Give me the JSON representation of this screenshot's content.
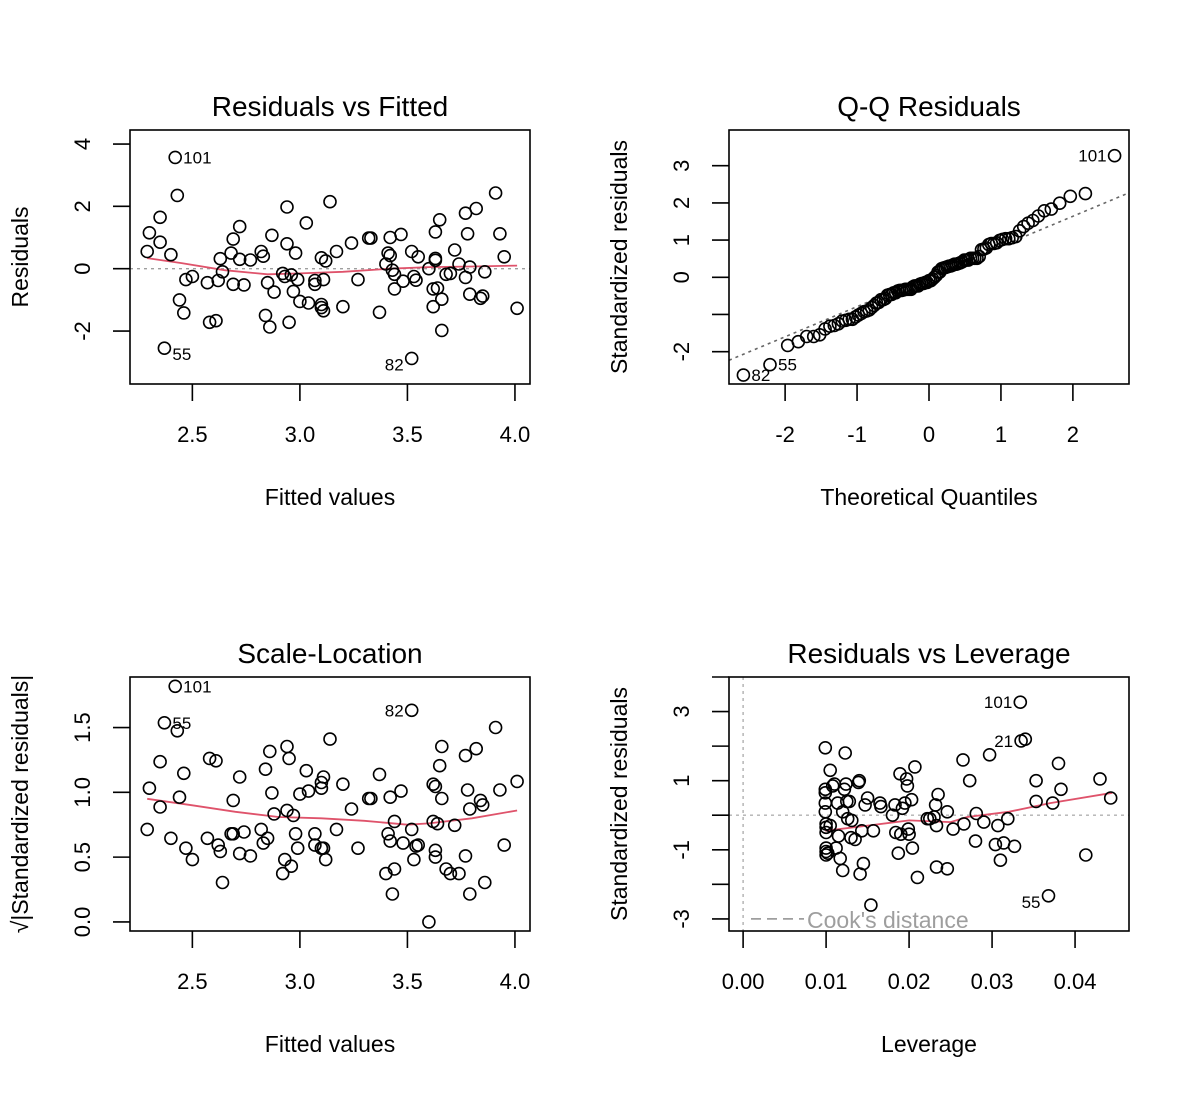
{
  "colors": {
    "smooth": "#DF536B",
    "ref": "#9E9E9E",
    "points": "#000000"
  },
  "chart_data": [
    {
      "type": "scatter",
      "id": "rvf",
      "title": "Residuals vs Fitted",
      "xlabel": "Fitted values",
      "ylabel": "Residuals",
      "xlim": [
        2.21,
        4.07
      ],
      "ylim": [
        -3.7,
        4.45
      ],
      "xticks": [
        2.5,
        3.0,
        3.5,
        4.0
      ],
      "xtick_labels": [
        "2.5",
        "3.0",
        "3.5",
        "4.0"
      ],
      "yticks": [
        -2,
        0,
        2,
        4
      ],
      "ytick_labels": [
        "-2",
        "0",
        "2",
        "4"
      ],
      "ref_line": {
        "type": "h",
        "value": 0,
        "style": "dotted"
      },
      "points": [
        [
          2.29,
          0.55
        ],
        [
          2.3,
          1.15
        ],
        [
          2.35,
          1.65
        ],
        [
          2.35,
          0.85
        ],
        [
          2.4,
          0.45
        ],
        [
          2.42,
          3.57
        ],
        [
          2.43,
          2.35
        ],
        [
          2.37,
          -2.55
        ],
        [
          2.44,
          -1.0
        ],
        [
          2.46,
          -1.42
        ],
        [
          2.47,
          -0.35
        ],
        [
          2.5,
          -0.25
        ],
        [
          2.57,
          -0.45
        ],
        [
          2.58,
          -1.72
        ],
        [
          2.61,
          -1.67
        ],
        [
          2.62,
          -0.38
        ],
        [
          2.63,
          0.32
        ],
        [
          2.64,
          -0.1
        ],
        [
          2.69,
          0.95
        ],
        [
          2.68,
          0.5
        ],
        [
          2.69,
          -0.5
        ],
        [
          2.72,
          1.35
        ],
        [
          2.72,
          0.3
        ],
        [
          2.74,
          -0.52
        ],
        [
          2.77,
          0.28
        ],
        [
          2.82,
          0.55
        ],
        [
          2.83,
          0.4
        ],
        [
          2.84,
          -1.5
        ],
        [
          2.85,
          -0.45
        ],
        [
          2.86,
          -1.87
        ],
        [
          2.87,
          1.07
        ],
        [
          2.88,
          -0.75
        ],
        [
          2.92,
          -0.15
        ],
        [
          2.93,
          -0.25
        ],
        [
          2.94,
          1.98
        ],
        [
          2.94,
          0.8
        ],
        [
          2.95,
          -1.72
        ],
        [
          2.96,
          -0.2
        ],
        [
          2.97,
          -0.73
        ],
        [
          2.98,
          0.5
        ],
        [
          2.99,
          -0.35
        ],
        [
          3.0,
          -1.05
        ],
        [
          3.03,
          1.47
        ],
        [
          3.04,
          -1.1
        ],
        [
          3.07,
          -0.5
        ],
        [
          3.07,
          -0.38
        ],
        [
          3.1,
          0.35
        ],
        [
          3.1,
          -1.15
        ],
        [
          3.1,
          -1.25
        ],
        [
          3.11,
          -0.35
        ],
        [
          3.11,
          -1.35
        ],
        [
          3.12,
          0.25
        ],
        [
          3.14,
          2.15
        ],
        [
          3.17,
          0.55
        ],
        [
          3.2,
          -1.22
        ],
        [
          3.24,
          0.82
        ],
        [
          3.27,
          -0.35
        ],
        [
          3.32,
          0.98
        ],
        [
          3.33,
          0.98
        ],
        [
          3.37,
          -1.4
        ],
        [
          3.4,
          0.15
        ],
        [
          3.41,
          0.5
        ],
        [
          3.42,
          1.0
        ],
        [
          3.42,
          0.42
        ],
        [
          3.43,
          -0.05
        ],
        [
          3.44,
          -0.65
        ],
        [
          3.44,
          -0.18
        ],
        [
          3.47,
          1.1
        ],
        [
          3.48,
          -0.4
        ],
        [
          3.52,
          -2.88
        ],
        [
          3.52,
          0.55
        ],
        [
          3.53,
          -0.25
        ],
        [
          3.54,
          -0.37
        ],
        [
          3.55,
          0.38
        ],
        [
          3.6,
          0.0
        ],
        [
          3.62,
          -1.22
        ],
        [
          3.62,
          -0.65
        ],
        [
          3.63,
          0.33
        ],
        [
          3.63,
          0.27
        ],
        [
          3.63,
          1.18
        ],
        [
          3.64,
          -0.62
        ],
        [
          3.65,
          1.57
        ],
        [
          3.66,
          -0.98
        ],
        [
          3.66,
          -1.98
        ],
        [
          3.68,
          -0.18
        ],
        [
          3.7,
          -0.15
        ],
        [
          3.72,
          0.6
        ],
        [
          3.74,
          0.15
        ],
        [
          3.77,
          -0.28
        ],
        [
          3.77,
          1.78
        ],
        [
          3.78,
          1.12
        ],
        [
          3.79,
          0.05
        ],
        [
          3.79,
          -0.82
        ],
        [
          3.82,
          1.93
        ],
        [
          3.84,
          -0.95
        ],
        [
          3.85,
          -0.88
        ],
        [
          3.86,
          -0.1
        ],
        [
          3.91,
          2.43
        ],
        [
          3.93,
          1.12
        ],
        [
          3.95,
          0.38
        ],
        [
          4.01,
          -1.27
        ]
      ],
      "smooth": [
        [
          2.29,
          0.34
        ],
        [
          2.45,
          0.18
        ],
        [
          2.65,
          -0.05
        ],
        [
          2.85,
          -0.18
        ],
        [
          3.0,
          -0.15
        ],
        [
          3.2,
          -0.1
        ],
        [
          3.42,
          0.0
        ],
        [
          3.6,
          0.05
        ],
        [
          3.8,
          0.07
        ],
        [
          4.01,
          0.1
        ]
      ],
      "labels": [
        {
          "text": "101",
          "x": 2.42,
          "y": 3.57,
          "side": "right"
        },
        {
          "text": "55",
          "x": 2.37,
          "y": -2.55,
          "side": "right-low"
        },
        {
          "text": "82",
          "x": 3.52,
          "y": -2.88,
          "side": "left-low"
        }
      ]
    },
    {
      "type": "scatter",
      "id": "qq",
      "title": "Q-Q Residuals",
      "xlabel": "Theoretical Quantiles",
      "ylabel": "Standardized residuals",
      "xlim": [
        -2.78,
        2.78
      ],
      "ylim": [
        -2.87,
        3.96
      ],
      "xticks": [
        -2,
        -1,
        0,
        1,
        2
      ],
      "xtick_labels": [
        "-2",
        "-1",
        "0",
        "1",
        "2"
      ],
      "yticks": [
        -2,
        -1,
        0,
        1,
        2,
        3
      ],
      "ytick_labels": [
        "-2",
        "",
        "0",
        "1",
        "2",
        "3"
      ],
      "ref_line": {
        "type": "ab",
        "intercept": 0.02,
        "slope": 0.81,
        "style": "dotted"
      },
      "n": 101,
      "extremes": {
        "low": [
          -2.58,
          -2.63
        ],
        "low2": [
          -2.21,
          -2.35
        ],
        "high": [
          2.58,
          3.27
        ]
      },
      "labels": [
        {
          "text": "101",
          "x": 2.58,
          "y": 3.27,
          "side": "left"
        },
        {
          "text": "55",
          "x": -2.21,
          "y": -2.35,
          "side": "right"
        },
        {
          "text": "82",
          "x": -2.58,
          "y": -2.63,
          "side": "right"
        }
      ]
    },
    {
      "type": "scatter",
      "id": "sl",
      "title": "Scale-Location",
      "xlabel": "Fitted values",
      "ylabel": "√|Standardized residuals|",
      "xlim": [
        2.21,
        4.07
      ],
      "ylim": [
        -0.07,
        1.89
      ],
      "xticks": [
        2.5,
        3.0,
        3.5,
        4.0
      ],
      "xtick_labels": [
        "2.5",
        "3.0",
        "3.5",
        "4.0"
      ],
      "yticks": [
        0.0,
        0.5,
        1.0,
        1.5
      ],
      "ytick_labels": [
        "0.0",
        "0.5",
        "1.0",
        "1.5"
      ],
      "smooth": [
        [
          2.29,
          0.95
        ],
        [
          2.5,
          0.9
        ],
        [
          2.7,
          0.85
        ],
        [
          2.9,
          0.81
        ],
        [
          3.1,
          0.8
        ],
        [
          3.3,
          0.78
        ],
        [
          3.5,
          0.75
        ],
        [
          3.6,
          0.76
        ],
        [
          3.8,
          0.8
        ],
        [
          4.01,
          0.86
        ]
      ],
      "labels": [
        {
          "text": "101",
          "x": 2.42,
          "y": 1.81,
          "side": "right"
        },
        {
          "text": "55",
          "x": 2.37,
          "y": 1.53,
          "side": "right"
        },
        {
          "text": "82",
          "x": 3.52,
          "y": 1.62,
          "side": "left"
        }
      ]
    },
    {
      "type": "scatter",
      "id": "rvl",
      "title": "Residuals vs Leverage",
      "xlabel": "Leverage",
      "ylabel": "Standardized residuals",
      "xlim": [
        -0.0017,
        0.0465
      ],
      "ylim": [
        -3.35,
        4.0
      ],
      "xticks": [
        0.0,
        0.01,
        0.02,
        0.03,
        0.04
      ],
      "xtick_labels": [
        "0.00",
        "0.01",
        "0.02",
        "0.03",
        "0.04"
      ],
      "yticks": [
        -3,
        -2,
        -1,
        0,
        1,
        2,
        3,
        4
      ],
      "ytick_labels": [
        "-3",
        "",
        "-1",
        "",
        "1",
        "",
        "3",
        ""
      ],
      "legend": "Cook's distance",
      "smooth": [
        [
          0.0099,
          -0.45
        ],
        [
          0.015,
          -0.3
        ],
        [
          0.02,
          -0.15
        ],
        [
          0.025,
          -0.2
        ],
        [
          0.027,
          -0.05
        ],
        [
          0.032,
          0.1
        ],
        [
          0.037,
          0.35
        ],
        [
          0.0445,
          0.65
        ]
      ],
      "points": [
        [
          0.0099,
          1.95
        ],
        [
          0.0099,
          0.75
        ],
        [
          0.0099,
          0.65
        ],
        [
          0.0099,
          0.35
        ],
        [
          0.0099,
          0.1
        ],
        [
          0.01,
          -0.25
        ],
        [
          0.01,
          -0.35
        ],
        [
          0.01,
          -0.5
        ],
        [
          0.01,
          -0.95
        ],
        [
          0.01,
          -1.05
        ],
        [
          0.01,
          -1.15
        ],
        [
          0.0102,
          -1.1
        ],
        [
          0.0105,
          1.3
        ],
        [
          0.0105,
          -0.3
        ],
        [
          0.0108,
          0.85
        ],
        [
          0.011,
          0.9
        ],
        [
          0.0112,
          -0.95
        ],
        [
          0.0114,
          0.35
        ],
        [
          0.0115,
          -0.6
        ],
        [
          0.0117,
          -1.25
        ],
        [
          0.012,
          0.1
        ],
        [
          0.012,
          -1.6
        ],
        [
          0.0122,
          0.75
        ],
        [
          0.0123,
          1.8
        ],
        [
          0.0124,
          0.9
        ],
        [
          0.0125,
          0.4
        ],
        [
          0.0126,
          -0.1
        ],
        [
          0.0128,
          0.4
        ],
        [
          0.013,
          -0.65
        ],
        [
          0.0131,
          -0.15
        ],
        [
          0.0135,
          -0.7
        ],
        [
          0.0139,
          0.95
        ],
        [
          0.014,
          1.0
        ],
        [
          0.0141,
          -1.7
        ],
        [
          0.0143,
          -0.45
        ],
        [
          0.0145,
          -1.4
        ],
        [
          0.0147,
          0.3
        ],
        [
          0.015,
          0.5
        ],
        [
          0.0154,
          -2.6
        ],
        [
          0.0157,
          -0.45
        ],
        [
          0.0165,
          0.35
        ],
        [
          0.0166,
          0.25
        ],
        [
          0.018,
          0.0
        ],
        [
          0.0183,
          0.3
        ],
        [
          0.0184,
          -0.5
        ],
        [
          0.0187,
          -1.1
        ],
        [
          0.0189,
          1.2
        ],
        [
          0.019,
          -0.55
        ],
        [
          0.0192,
          0.2
        ],
        [
          0.0195,
          0.35
        ],
        [
          0.0197,
          1.05
        ],
        [
          0.0198,
          0.85
        ],
        [
          0.0199,
          -0.4
        ],
        [
          0.02,
          -0.55
        ],
        [
          0.0203,
          0.45
        ],
        [
          0.0204,
          -0.95
        ],
        [
          0.0207,
          1.4
        ],
        [
          0.021,
          -1.8
        ],
        [
          0.0222,
          -0.1
        ],
        [
          0.0225,
          -0.1
        ],
        [
          0.023,
          -0.05
        ],
        [
          0.0232,
          0.3
        ],
        [
          0.0233,
          -1.5
        ],
        [
          0.0233,
          -0.3
        ],
        [
          0.0235,
          0.6
        ],
        [
          0.0246,
          -1.55
        ],
        [
          0.0246,
          0.1
        ],
        [
          0.0253,
          -0.4
        ],
        [
          0.0265,
          1.6
        ],
        [
          0.0266,
          -0.25
        ],
        [
          0.0273,
          1.0
        ],
        [
          0.028,
          -0.75
        ],
        [
          0.0281,
          0.05
        ],
        [
          0.029,
          -0.2
        ],
        [
          0.0297,
          1.75
        ],
        [
          0.0304,
          -0.85
        ],
        [
          0.0307,
          -0.3
        ],
        [
          0.031,
          -1.3
        ],
        [
          0.0314,
          -0.8
        ],
        [
          0.0319,
          -0.1
        ],
        [
          0.0327,
          -0.9
        ],
        [
          0.0334,
          3.27
        ],
        [
          0.0335,
          2.15
        ],
        [
          0.034,
          2.2
        ],
        [
          0.0353,
          1.0
        ],
        [
          0.0353,
          0.4
        ],
        [
          0.0368,
          -2.33
        ],
        [
          0.0373,
          0.35
        ],
        [
          0.038,
          1.5
        ],
        [
          0.0383,
          0.75
        ],
        [
          0.0413,
          -1.15
        ],
        [
          0.043,
          1.05
        ],
        [
          0.0443,
          0.5
        ]
      ],
      "labels": [
        {
          "text": "101",
          "x": 0.0334,
          "y": 3.27,
          "side": "left"
        },
        {
          "text": "21",
          "x": 0.0335,
          "y": 2.15,
          "side": "left"
        },
        {
          "text": "55",
          "x": 0.0368,
          "y": -2.33,
          "side": "left-low"
        }
      ]
    }
  ]
}
